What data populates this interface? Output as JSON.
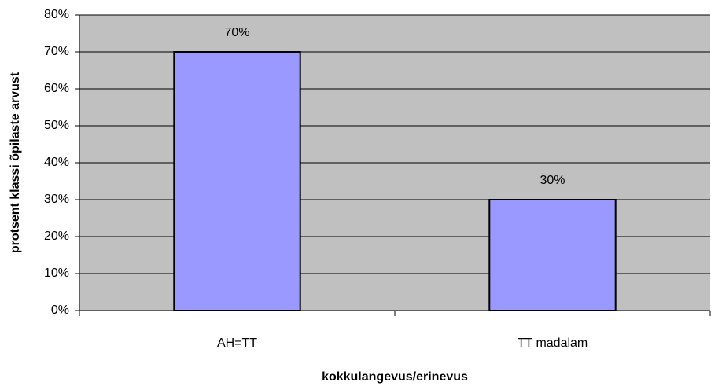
{
  "chart_data": {
    "type": "bar",
    "x_label": "kokkulangevus/erinevus",
    "y_label": "protsent klassi õpilaste arvust",
    "categories": [
      "AH=TT",
      "TT madalam"
    ],
    "values": [
      70,
      30
    ],
    "value_labels": [
      "70%",
      "30%"
    ],
    "color": "#9999ff",
    "ylim": [
      0,
      80
    ],
    "yticks": [
      {
        "value": 0,
        "label": "0%"
      },
      {
        "value": 10,
        "label": "10%"
      },
      {
        "value": 20,
        "label": "20%"
      },
      {
        "value": 30,
        "label": "30%"
      },
      {
        "value": 40,
        "label": "40%"
      },
      {
        "value": 50,
        "label": "50%"
      },
      {
        "value": 60,
        "label": "60%"
      },
      {
        "value": 70,
        "label": "70%"
      },
      {
        "value": 80,
        "label": "80%"
      }
    ],
    "grid": true
  }
}
